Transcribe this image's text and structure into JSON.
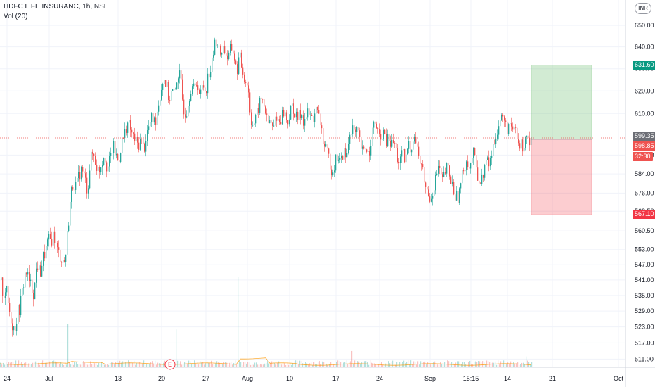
{
  "header": {
    "symbol_line": "HDFC LIFE INSURANC, 1h, NSE",
    "volume_label": "Vol (20)"
  },
  "currency_badge": "INR",
  "markers": {
    "earnings_letter": "E"
  },
  "price_tags": {
    "target": {
      "label": "631.60",
      "color": "#089981"
    },
    "current": {
      "label": "599.35",
      "color": "#6d6f76"
    },
    "entry": {
      "label": "598.85",
      "color": "#ef5350"
    },
    "countdown": {
      "label": "32:30",
      "color": "#ef5350"
    },
    "stop": {
      "label": "567.10",
      "color": "#f23645"
    }
  },
  "chart_data": {
    "type": "candlestick",
    "y_scale": "log",
    "ylim": [
      508,
      658
    ],
    "y_ticks": [
      650,
      640,
      630,
      620,
      610,
      592,
      584,
      576,
      568.5,
      560.5,
      553,
      547,
      541,
      535,
      529,
      523,
      517,
      511
    ],
    "y_tick_labels": [
      "650.00",
      "640.00",
      "630.00",
      "620.00",
      "610.00",
      "592.00",
      "584.00",
      "576.00",
      "568.50",
      "560.50",
      "553.00",
      "547.00",
      "541.00",
      "535.00",
      "529.00",
      "523.00",
      "517.00",
      "511.00"
    ],
    "x_labels": [
      "24",
      "Jul",
      "13",
      "20",
      "27",
      "Aug",
      "10",
      "17",
      "24",
      "Sep",
      "15:15",
      "14",
      "21",
      "Oct"
    ],
    "price_path": [
      [
        0,
        541
      ],
      [
        4,
        535
      ],
      [
        8,
        538
      ],
      [
        12,
        530
      ],
      [
        16,
        525
      ],
      [
        20,
        522
      ],
      [
        24,
        528
      ],
      [
        28,
        531
      ],
      [
        32,
        538
      ],
      [
        36,
        545
      ],
      [
        40,
        541
      ],
      [
        44,
        538
      ],
      [
        48,
        536
      ],
      [
        52,
        548
      ],
      [
        56,
        543
      ],
      [
        60,
        549
      ],
      [
        64,
        552
      ],
      [
        68,
        556
      ],
      [
        72,
        557
      ],
      [
        76,
        559
      ],
      [
        80,
        553
      ],
      [
        84,
        551
      ],
      [
        88,
        549
      ],
      [
        92,
        548
      ],
      [
        96,
        562
      ],
      [
        100,
        575
      ],
      [
        104,
        581
      ],
      [
        108,
        578
      ],
      [
        112,
        584
      ],
      [
        116,
        586
      ],
      [
        120,
        582
      ],
      [
        124,
        577
      ],
      [
        128,
        590
      ],
      [
        132,
        593
      ],
      [
        136,
        588
      ],
      [
        140,
        585
      ],
      [
        144,
        589
      ],
      [
        148,
        593
      ],
      [
        152,
        586
      ],
      [
        156,
        590
      ],
      [
        160,
        596
      ],
      [
        164,
        592
      ],
      [
        168,
        589
      ],
      [
        172,
        597
      ],
      [
        176,
        600
      ],
      [
        180,
        606
      ],
      [
        184,
        604
      ],
      [
        188,
        600
      ],
      [
        192,
        598
      ],
      [
        196,
        596
      ],
      [
        200,
        599
      ],
      [
        204,
        594
      ],
      [
        208,
        601
      ],
      [
        212,
        605
      ],
      [
        216,
        608
      ],
      [
        220,
        606
      ],
      [
        224,
        613
      ],
      [
        228,
        620
      ],
      [
        232,
        626
      ],
      [
        236,
        623
      ],
      [
        240,
        616
      ],
      [
        244,
        620
      ],
      [
        248,
        618
      ],
      [
        252,
        628
      ],
      [
        256,
        626
      ],
      [
        260,
        613
      ],
      [
        264,
        610
      ],
      [
        268,
        617
      ],
      [
        272,
        623
      ],
      [
        276,
        620
      ],
      [
        280,
        625
      ],
      [
        284,
        617
      ],
      [
        288,
        623
      ],
      [
        292,
        620
      ],
      [
        296,
        628
      ],
      [
        300,
        630
      ],
      [
        304,
        640
      ],
      [
        308,
        644
      ],
      [
        312,
        636
      ],
      [
        316,
        640
      ],
      [
        320,
        638
      ],
      [
        324,
        634
      ],
      [
        328,
        640
      ],
      [
        332,
        637
      ],
      [
        336,
        628
      ],
      [
        340,
        636
      ],
      [
        344,
        630
      ],
      [
        348,
        625
      ],
      [
        352,
        623
      ],
      [
        356,
        608
      ],
      [
        360,
        605
      ],
      [
        364,
        608
      ],
      [
        368,
        614
      ],
      [
        372,
        617
      ],
      [
        376,
        613
      ],
      [
        380,
        605
      ],
      [
        384,
        607
      ],
      [
        388,
        602
      ],
      [
        392,
        610
      ],
      [
        396,
        606
      ],
      [
        400,
        609
      ],
      [
        404,
        611
      ],
      [
        408,
        606
      ],
      [
        412,
        610
      ],
      [
        416,
        614
      ],
      [
        420,
        608
      ],
      [
        424,
        608
      ],
      [
        428,
        611
      ],
      [
        432,
        606
      ],
      [
        436,
        610
      ],
      [
        440,
        609
      ],
      [
        444,
        607
      ],
      [
        448,
        612
      ],
      [
        452,
        609
      ],
      [
        456,
        605
      ],
      [
        460,
        596
      ],
      [
        464,
        593
      ],
      [
        468,
        590
      ],
      [
        472,
        585
      ],
      [
        476,
        589
      ],
      [
        480,
        592
      ],
      [
        484,
        588
      ],
      [
        488,
        594
      ],
      [
        492,
        590
      ],
      [
        496,
        600
      ],
      [
        500,
        605
      ],
      [
        504,
        600
      ],
      [
        508,
        602
      ],
      [
        512,
        596
      ],
      [
        516,
        592
      ],
      [
        520,
        596
      ],
      [
        524,
        592
      ],
      [
        528,
        601
      ],
      [
        532,
        606
      ],
      [
        536,
        604
      ],
      [
        540,
        596
      ],
      [
        544,
        603
      ],
      [
        548,
        597
      ],
      [
        552,
        599
      ],
      [
        556,
        596
      ],
      [
        560,
        598
      ],
      [
        564,
        592
      ],
      [
        568,
        588
      ],
      [
        572,
        593
      ],
      [
        576,
        588
      ],
      [
        580,
        597
      ],
      [
        584,
        594
      ],
      [
        588,
        602
      ],
      [
        592,
        596
      ],
      [
        596,
        590
      ],
      [
        600,
        586
      ],
      [
        604,
        580
      ],
      [
        608,
        575
      ],
      [
        612,
        574
      ],
      [
        616,
        578
      ],
      [
        620,
        583
      ],
      [
        624,
        588
      ],
      [
        628,
        580
      ],
      [
        632,
        584
      ],
      [
        636,
        587
      ],
      [
        640,
        582
      ],
      [
        644,
        578
      ],
      [
        648,
        574
      ],
      [
        652,
        575
      ],
      [
        656,
        581
      ],
      [
        660,
        588
      ],
      [
        664,
        590
      ],
      [
        668,
        586
      ],
      [
        672,
        593
      ],
      [
        676,
        589
      ],
      [
        680,
        582
      ],
      [
        684,
        580
      ],
      [
        688,
        586
      ],
      [
        692,
        590
      ],
      [
        696,
        588
      ],
      [
        700,
        594
      ],
      [
        704,
        600
      ],
      [
        708,
        604
      ],
      [
        712,
        608
      ],
      [
        716,
        608
      ],
      [
        720,
        603
      ],
      [
        724,
        606
      ],
      [
        728,
        600
      ],
      [
        732,
        605
      ],
      [
        736,
        597
      ],
      [
        740,
        596
      ],
      [
        744,
        596
      ],
      [
        748,
        602
      ],
      [
        752,
        599
      ],
      [
        756,
        599.35
      ]
    ],
    "volume": {
      "events_x": [
        96,
        250,
        338,
        339,
        500,
        707,
        748
      ],
      "events_value": [
        0.48,
        0.42,
        1.0,
        0.72,
        0.18,
        0.14,
        0.12
      ],
      "sma_label": "Vol (20)"
    },
    "position": {
      "type": "long",
      "entry": 598.85,
      "target": 631.6,
      "stop": 567.1,
      "start_label": "14",
      "end_label": "21"
    },
    "current_price": 599.35
  }
}
